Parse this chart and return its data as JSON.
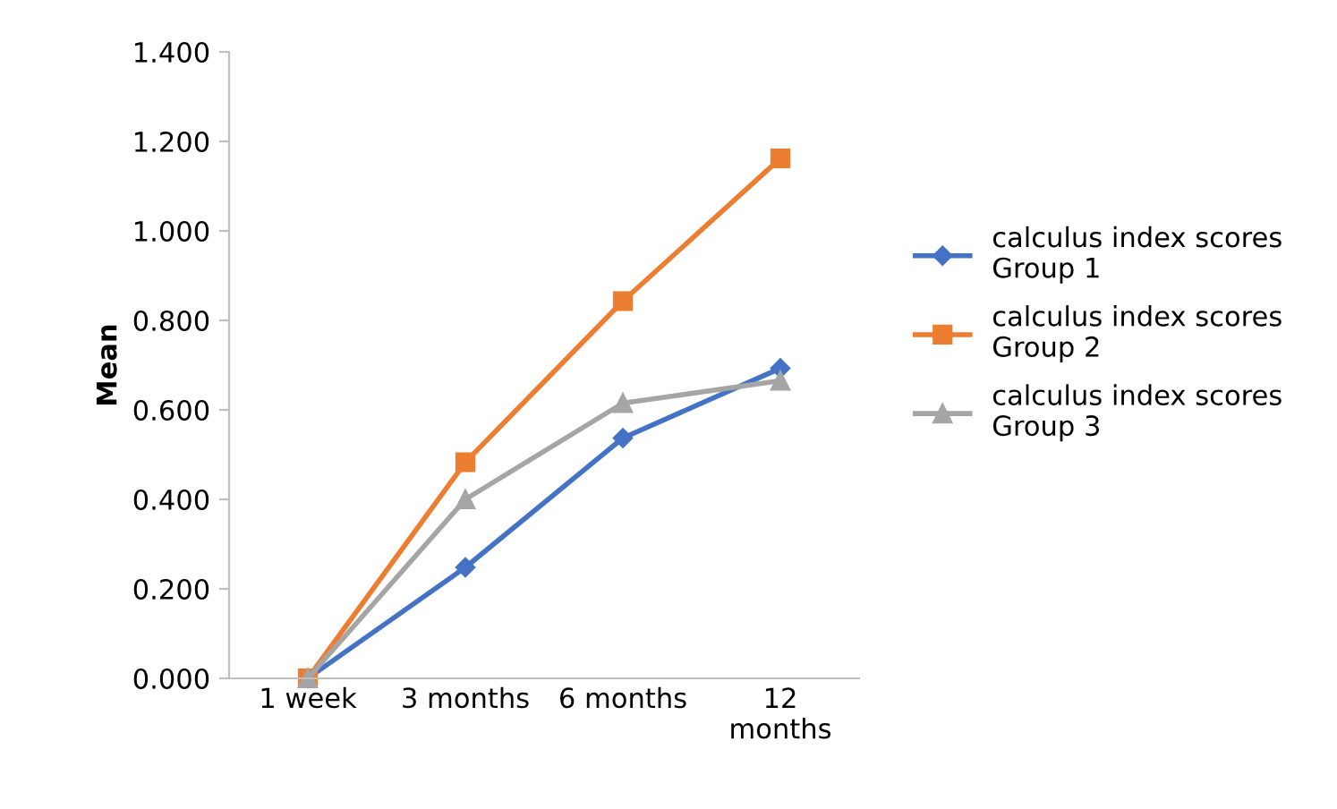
{
  "chart_data": {
    "type": "line",
    "ylabel": "Mean",
    "categories": [
      "1 week",
      "3 months",
      "6 months",
      "12\nmonths"
    ],
    "series": [
      {
        "name": "calculus index scores\nGroup 1",
        "color": "#4472c4",
        "marker": "diamond",
        "values": [
          0.0,
          0.248,
          0.537,
          0.693
        ]
      },
      {
        "name": "calculus index scores\nGroup 2",
        "color": "#ed7d31",
        "marker": "square",
        "values": [
          0.0,
          0.483,
          0.843,
          1.162
        ]
      },
      {
        "name": "calculus index scores\nGroup 3",
        "color": "#a5a5a5",
        "marker": "triangle",
        "values": [
          0.0,
          0.4,
          0.615,
          0.665
        ]
      }
    ],
    "ylim": [
      0,
      1.4
    ],
    "yticks": [
      {
        "value": 0,
        "label": "0.000"
      },
      {
        "value": 0.2,
        "label": "0.200"
      },
      {
        "value": 0.4,
        "label": "0.400"
      },
      {
        "value": 0.6,
        "label": "0.600"
      },
      {
        "value": 0.8,
        "label": "0.800"
      },
      {
        "value": 1.0,
        "label": "1.000"
      },
      {
        "value": 1.2,
        "label": "1.200"
      },
      {
        "value": 1.4,
        "label": "1.400"
      }
    ],
    "legend": "right",
    "grid": false,
    "line_style": "solid"
  }
}
